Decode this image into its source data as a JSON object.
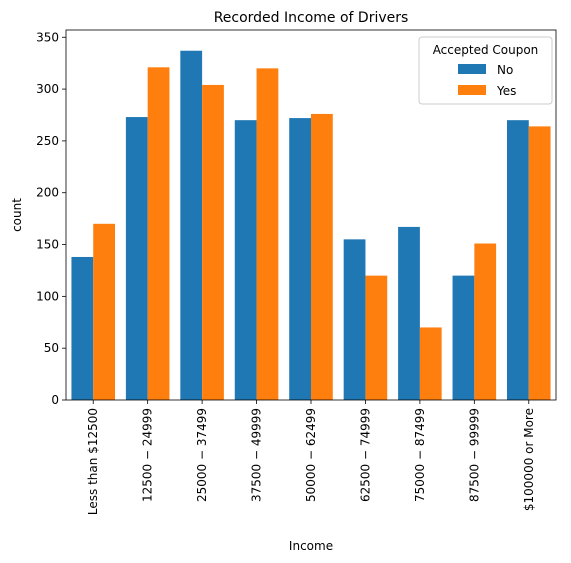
{
  "chart_data": {
    "type": "bar",
    "title": "Recorded Income of Drivers",
    "xlabel": "Income",
    "ylabel": "count",
    "ylim": [
      0,
      350
    ],
    "yticks": [
      0,
      50,
      100,
      150,
      200,
      250,
      300,
      350
    ],
    "categories": [
      "Less than $12500",
      "$12500 - $24999",
      "$25000 - $37499",
      "$37500 - $49999",
      "$50000 - $62499",
      "$62500 - $74999",
      "$75000 - $87499",
      "$87500 - $99999",
      "$100000 or More"
    ],
    "category_display": [
      "Less than $12500",
      "12500 − 24999",
      "25000 − 37499",
      "37500 − 49999",
      "50000 − 62499",
      "62500 − 74999",
      "75000 − 87499",
      "87500 − 99999",
      "$100000 or More"
    ],
    "series": [
      {
        "name": "No",
        "color": "#1f77b4",
        "values": [
          138,
          273,
          337,
          270,
          272,
          155,
          167,
          120,
          270
        ]
      },
      {
        "name": "Yes",
        "color": "#ff7f0e",
        "values": [
          170,
          321,
          304,
          320,
          276,
          120,
          70,
          151,
          264
        ]
      }
    ],
    "legend": {
      "title": "Accepted Coupon",
      "placement": "top-right"
    },
    "grid": false
  }
}
